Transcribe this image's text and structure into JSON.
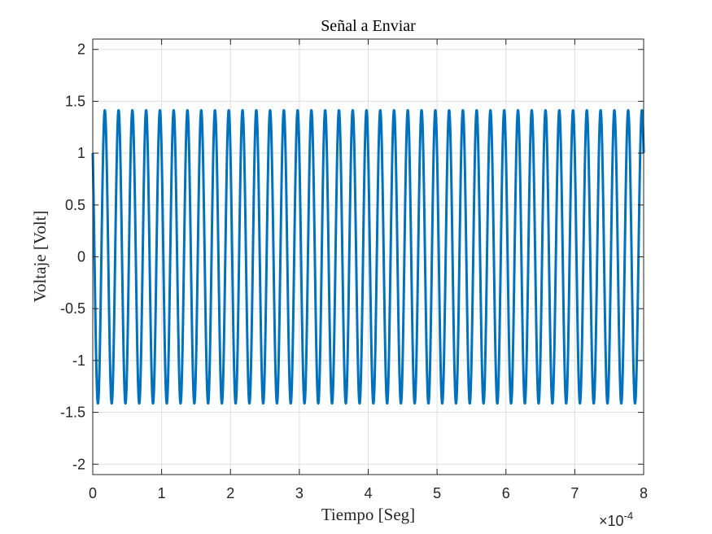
{
  "chart_data": {
    "type": "line",
    "title": "Señal a Enviar",
    "xlabel": "Tiempo [Seg]",
    "ylabel": "Voltaje [Volt]",
    "x_exponent": {
      "base": "×10",
      "power": "-4"
    },
    "xlim": [
      0,
      0.0008
    ],
    "ylim": [
      -2.1,
      2.1
    ],
    "xticks": [
      0,
      0.0001,
      0.0002,
      0.0003,
      0.0004,
      0.0005,
      0.0006,
      0.0007,
      0.0008
    ],
    "xtick_labels": [
      "0",
      "1",
      "2",
      "3",
      "4",
      "5",
      "6",
      "7",
      "8"
    ],
    "yticks": [
      2,
      1.5,
      1,
      0.5,
      0,
      -0.5,
      -1,
      -1.5,
      -2
    ],
    "ytick_labels": [
      "2",
      "1.5",
      "1",
      "0.5",
      "0",
      "-0.5",
      "-1",
      "-1.5",
      "-2"
    ],
    "grid": true,
    "series": [
      {
        "function": "sine",
        "amplitude": 1.4142,
        "frequency_hz": 50000,
        "phase_deg": 135,
        "t_start": 0,
        "t_end": 0.0008,
        "color": "#0072BD"
      }
    ]
  }
}
